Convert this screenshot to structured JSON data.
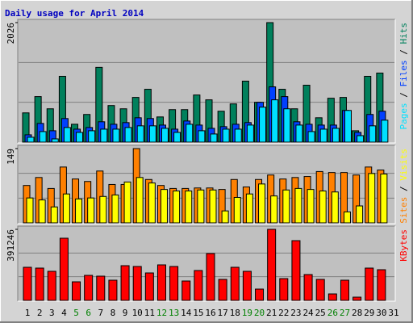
{
  "title": "Daily usage for April 2014",
  "weekend_days": [
    5,
    6,
    12,
    13,
    19,
    20,
    26,
    27
  ],
  "weekend_label_color": "#008000",
  "chart_data": [
    {
      "type": "bar",
      "ylim": [
        0,
        2026
      ],
      "yticks": [
        2026
      ],
      "series": [
        {
          "name": "Hits",
          "color": "#00805c",
          "values": [
            496,
            772,
            565,
            1116,
            303,
            469,
            1268,
            620,
            565,
            758,
            896,
            427,
            551,
            551,
            799,
            717,
            524,
            648,
            1034,
            675,
            2026,
            896,
            565,
            965,
            413,
            744,
            758,
            193,
            1116,
            1171,
            0
          ]
        },
        {
          "name": "Files",
          "color": "#0040ff",
          "values": [
            124,
            317,
            193,
            400,
            220,
            248,
            345,
            303,
            331,
            413,
            400,
            289,
            220,
            358,
            289,
            234,
            262,
            303,
            331,
            675,
            937,
            772,
            345,
            303,
            289,
            289,
            537,
            165,
            469,
            524,
            0
          ]
        },
        {
          "name": "Pages",
          "color": "#00e0ff",
          "values": [
            83,
            179,
            55,
            248,
            165,
            193,
            220,
            220,
            248,
            276,
            276,
            234,
            165,
            303,
            193,
            138,
            220,
            220,
            289,
            593,
            717,
            565,
            289,
            179,
            220,
            234,
            537,
            110,
            276,
            372,
            0
          ]
        }
      ]
    },
    {
      "type": "bar",
      "ylim": [
        0,
        149
      ],
      "yticks": [
        149
      ],
      "series": [
        {
          "name": "Visits",
          "color": "#ffff00",
          "values": [
            50,
            46,
            32,
            58,
            48,
            50,
            53,
            56,
            82,
            91,
            80,
            67,
            64,
            64,
            66,
            66,
            24,
            51,
            58,
            78,
            54,
            66,
            69,
            67,
            64,
            62,
            22,
            34,
            99,
            98,
            0
          ]
        },
        {
          "name": "Sites",
          "color": "#ff8000",
          "values": [
            75,
            91,
            69,
            112,
            88,
            83,
            104,
            77,
            77,
            149,
            87,
            75,
            69,
            69,
            70,
            70,
            67,
            87,
            72,
            87,
            96,
            88,
            91,
            93,
            103,
            101,
            101,
            96,
            112,
            106,
            0
          ]
        }
      ]
    },
    {
      "type": "bar",
      "ylim": [
        0,
        391246
      ],
      "yticks": [
        391246
      ],
      "categories": [
        "1",
        "2",
        "3",
        "4",
        "5",
        "6",
        "7",
        "8",
        "9",
        "10",
        "11",
        "12",
        "13",
        "14",
        "15",
        "16",
        "17",
        "18",
        "19",
        "20",
        "21",
        "22",
        "23",
        "24",
        "25",
        "26",
        "27",
        "28",
        "29",
        "30",
        "31"
      ],
      "series": [
        {
          "name": "KBytes",
          "color": "#ff0000",
          "values": [
            182286,
            177840,
            160056,
            342342,
            102258,
            137826,
            133380,
            111150,
            191178,
            186732,
            151164,
            195624,
            186732,
            106704,
            164502,
            257868,
            115596,
            182286,
            160056,
            62244,
            391246,
            120042,
            329004,
            142272,
            115596,
            35568,
            111150,
            17784,
            177840,
            168948,
            0
          ]
        }
      ]
    }
  ]
}
